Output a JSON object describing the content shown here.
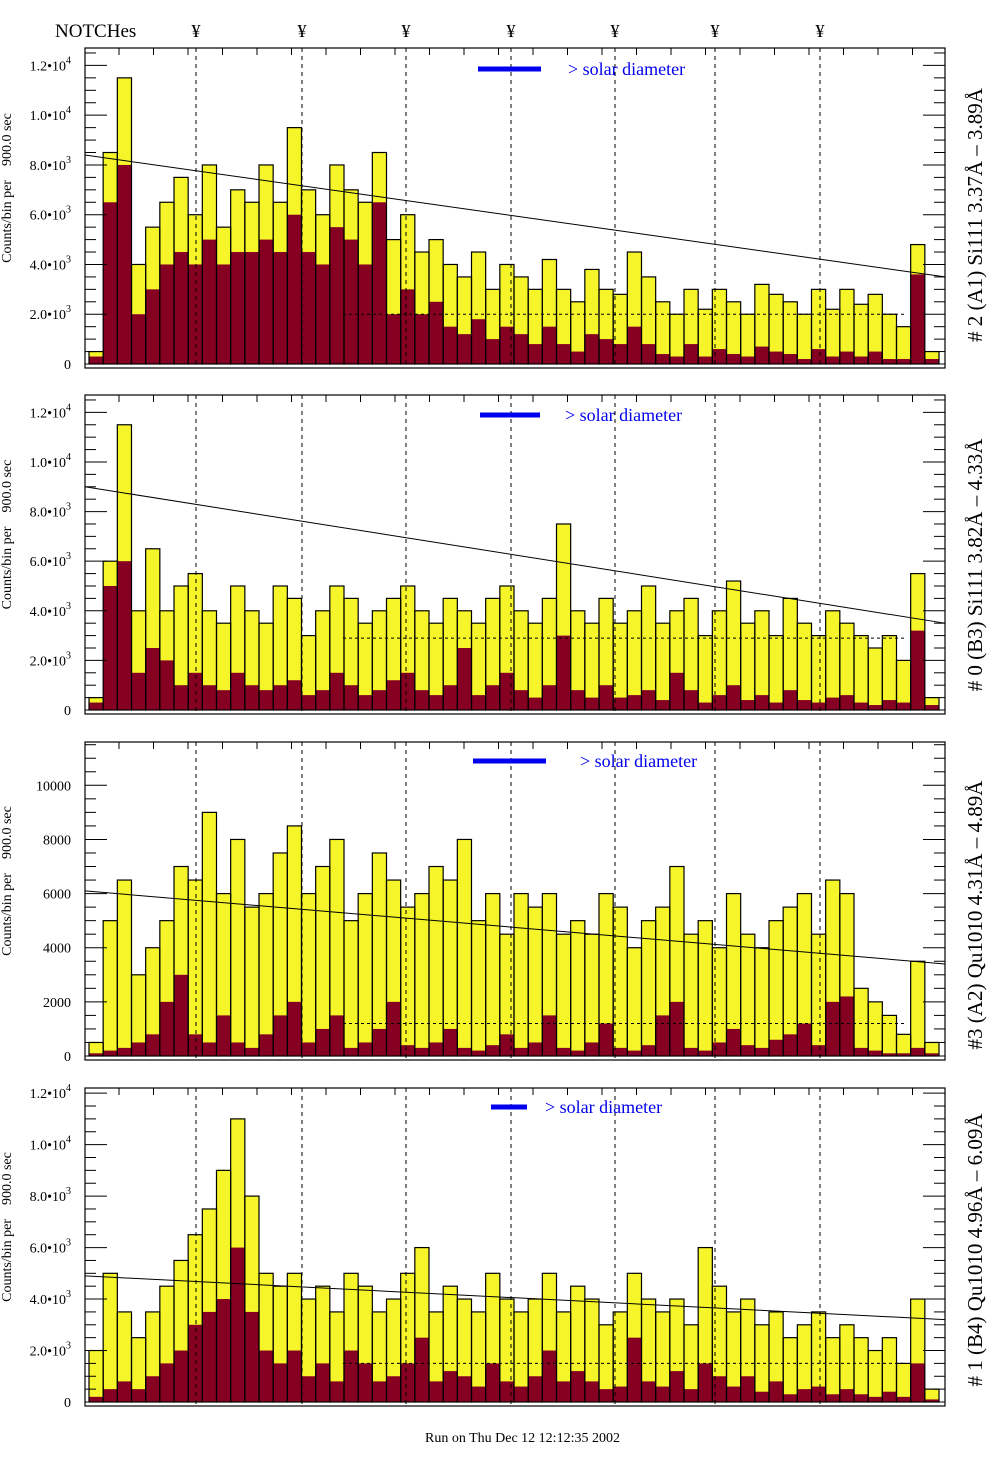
{
  "header": {
    "notches_label": "NOTCHes",
    "notch_marker": "¥"
  },
  "footer": {
    "run_text": "Run on Thu Dec 12 12:12:35 2002"
  },
  "colors": {
    "total": "#f5f52a",
    "subset": "#860022",
    "legend": "#0000ee",
    "outline": "#000000"
  },
  "chart_data": [
    {
      "type": "bar",
      "title": "# 2 (A1) Si111  3.37Å – 3.89Å",
      "ylabel": "Counts/bin per    900.0 sec",
      "legend": "> solar diameter",
      "value_unit_multiplier": 1000,
      "ylim": [
        0,
        12.7
      ],
      "yticks": [
        {
          "v": 0,
          "m": "0",
          "e": ""
        },
        {
          "v": 2,
          "m": "2.0•10",
          "e": "3"
        },
        {
          "v": 4,
          "m": "4.0•10",
          "e": "3"
        },
        {
          "v": 6,
          "m": "6.0•10",
          "e": "3"
        },
        {
          "v": 8,
          "m": "8.0•10",
          "e": "3"
        },
        {
          "v": 10,
          "m": "1.0•10",
          "e": "4"
        },
        {
          "v": 12,
          "m": "1.2•10",
          "e": "4"
        }
      ],
      "trend": [
        8.4,
        3.5
      ],
      "mean_level": 2.0,
      "total": [
        0.5,
        8.5,
        11.5,
        4,
        5.5,
        6.5,
        7.5,
        6,
        8,
        5.5,
        7,
        6.5,
        8,
        6.5,
        9.5,
        7,
        6,
        8,
        7,
        6.5,
        8.5,
        5,
        6,
        4.5,
        5,
        4,
        3.5,
        4.5,
        3,
        4,
        3.5,
        3,
        4.2,
        3,
        2.5,
        3.8,
        3,
        2.8,
        4.5,
        3.5,
        2.5,
        2,
        3,
        2.2,
        3,
        2.5,
        2,
        3.2,
        2.8,
        2.5,
        2,
        3,
        2.2,
        3,
        2.4,
        2.8,
        2,
        1.5,
        4.8,
        0.5
      ],
      "subset": [
        0.3,
        6.5,
        8,
        2,
        3,
        4,
        4.5,
        4,
        5,
        4,
        4.5,
        4.5,
        5,
        4.5,
        6,
        4.5,
        4,
        5.5,
        5,
        4,
        6.5,
        2,
        3,
        2,
        2.5,
        1.5,
        1.2,
        1.8,
        1,
        1.5,
        1.2,
        0.8,
        1.5,
        0.8,
        0.5,
        1.2,
        1,
        0.8,
        1.5,
        0.8,
        0.4,
        0.3,
        0.8,
        0.3,
        0.6,
        0.4,
        0.3,
        0.7,
        0.5,
        0.4,
        0.2,
        0.6,
        0.3,
        0.5,
        0.3,
        0.5,
        0.2,
        0.2,
        3.6,
        0.2
      ]
    },
    {
      "type": "bar",
      "title": "# 0 (B3) Si111  3.82Å – 4.33Å",
      "ylabel": "Counts/bin per    900.0 sec",
      "legend": "> solar diameter",
      "value_unit_multiplier": 1000,
      "ylim": [
        0,
        12.7
      ],
      "yticks": [
        {
          "v": 0,
          "m": "0",
          "e": ""
        },
        {
          "v": 2,
          "m": "2.0•10",
          "e": "3"
        },
        {
          "v": 4,
          "m": "4.0•10",
          "e": "3"
        },
        {
          "v": 6,
          "m": "6.0•10",
          "e": "3"
        },
        {
          "v": 8,
          "m": "8.0•10",
          "e": "3"
        },
        {
          "v": 10,
          "m": "1.0•10",
          "e": "4"
        },
        {
          "v": 12,
          "m": "1.2•10",
          "e": "4"
        }
      ],
      "trend": [
        9.0,
        3.5
      ],
      "mean_level": 2.9,
      "total": [
        0.5,
        6,
        11.5,
        4,
        6.5,
        4,
        5,
        5.5,
        4,
        3.5,
        5,
        4,
        3.5,
        5,
        4.5,
        3,
        4,
        5,
        4.5,
        3.5,
        4,
        4.5,
        5,
        4,
        3.5,
        4.5,
        4,
        3.5,
        4.5,
        5,
        4,
        3.5,
        4.5,
        7.5,
        4,
        3.5,
        4.5,
        3.5,
        4,
        5,
        3.5,
        4,
        4.5,
        3,
        4,
        5.2,
        3.5,
        4,
        3,
        4.5,
        3.5,
        3,
        4,
        3.5,
        3,
        2.5,
        3,
        2,
        5.5,
        0.5
      ],
      "subset": [
        0.3,
        5,
        6,
        1.5,
        2.5,
        2,
        1,
        1.5,
        1,
        0.8,
        1.5,
        1,
        0.8,
        1,
        1.2,
        0.6,
        0.8,
        1.5,
        1,
        0.6,
        0.8,
        1.2,
        1.5,
        0.8,
        0.6,
        1,
        2.5,
        0.6,
        1,
        1.5,
        0.8,
        0.5,
        1,
        3,
        0.8,
        0.5,
        1,
        0.5,
        0.6,
        0.8,
        0.4,
        1.5,
        0.8,
        0.3,
        0.6,
        1,
        0.4,
        0.6,
        0.3,
        0.8,
        0.4,
        0.3,
        0.5,
        0.6,
        0.3,
        0.2,
        0.4,
        0.3,
        3.2,
        0.2
      ]
    },
    {
      "type": "bar",
      "title": "#3 (A2) Qu1010  4.31Å – 4.89Å",
      "ylabel": "Counts/bin per    900.0 sec",
      "legend": "> solar diameter",
      "value_unit_multiplier": 1000,
      "ylim": [
        0,
        11.6
      ],
      "yticks": [
        {
          "v": 0,
          "m": "0",
          "e": ""
        },
        {
          "v": 2,
          "m": "2000",
          "e": ""
        },
        {
          "v": 4,
          "m": "4000",
          "e": ""
        },
        {
          "v": 6,
          "m": "6000",
          "e": ""
        },
        {
          "v": 8,
          "m": "8000",
          "e": ""
        },
        {
          "v": 10,
          "m": "10000",
          "e": ""
        }
      ],
      "trend": [
        6.1,
        3.4
      ],
      "mean_level": 1.2,
      "total": [
        0.5,
        5,
        6.5,
        3,
        4,
        5,
        7,
        6.5,
        9,
        6,
        8,
        5.5,
        6,
        7.5,
        8.5,
        6,
        7,
        8,
        5,
        6,
        7.5,
        6.5,
        5.5,
        6,
        7,
        6.5,
        8,
        5,
        6,
        4.5,
        6,
        5.5,
        6,
        4.5,
        5,
        4.5,
        6,
        5.5,
        4,
        5,
        5.5,
        7,
        4.5,
        5,
        4,
        6,
        4.5,
        4,
        5,
        5.5,
        6,
        4.5,
        6.5,
        6,
        2.5,
        2,
        1.5,
        0.8,
        3.5,
        0.5
      ],
      "subset": [
        0.1,
        0.2,
        0.3,
        0.5,
        0.8,
        2,
        3,
        0.8,
        0.5,
        1.5,
        0.5,
        0.3,
        0.8,
        1.5,
        2,
        0.5,
        1,
        1.5,
        0.3,
        0.5,
        1,
        2,
        0.4,
        0.3,
        0.5,
        1,
        0.3,
        0.2,
        0.4,
        0.8,
        0.3,
        0.5,
        1.5,
        0.3,
        0.2,
        0.5,
        1.2,
        0.3,
        0.2,
        0.4,
        1.5,
        2,
        0.3,
        0.2,
        0.5,
        1,
        0.4,
        0.3,
        0.6,
        0.8,
        1.2,
        0.4,
        2,
        2.2,
        0.3,
        0.2,
        0.1,
        0.1,
        0.3,
        0.1
      ]
    },
    {
      "type": "bar",
      "title": "# 1 (B4) Qu1010 4.96Å – 6.09Å",
      "ylabel": "Counts/bin per    900.0 sec",
      "legend": "> solar diameter",
      "value_unit_multiplier": 1000,
      "ylim": [
        0,
        12.2
      ],
      "yticks": [
        {
          "v": 0,
          "m": "0",
          "e": ""
        },
        {
          "v": 2,
          "m": "2.0•10",
          "e": "3"
        },
        {
          "v": 4,
          "m": "4.0•10",
          "e": "3"
        },
        {
          "v": 6,
          "m": "6.0•10",
          "e": "3"
        },
        {
          "v": 8,
          "m": "8.0•10",
          "e": "3"
        },
        {
          "v": 10,
          "m": "1.0•10",
          "e": "4"
        },
        {
          "v": 12,
          "m": "1.2•10",
          "e": "4"
        }
      ],
      "trend": [
        4.9,
        3.2
      ],
      "mean_level": 1.5,
      "total": [
        2,
        5,
        3.5,
        2.5,
        3.5,
        4.5,
        5.5,
        6.5,
        7.5,
        9,
        11,
        8,
        5,
        4.5,
        5,
        4,
        4.5,
        3.5,
        5,
        4.5,
        3.5,
        4,
        5,
        6,
        3.5,
        4.5,
        4,
        3.5,
        5,
        4,
        3.5,
        4,
        5,
        3.5,
        4.5,
        4,
        3,
        3.5,
        5,
        4,
        3.5,
        4,
        3,
        6,
        4.5,
        3.5,
        4,
        3,
        3.5,
        2.5,
        3,
        3.5,
        2.5,
        3,
        2.5,
        2,
        2.5,
        1.5,
        4,
        0.5
      ],
      "subset": [
        0.2,
        0.5,
        0.8,
        0.5,
        1,
        1.5,
        2,
        3,
        3.5,
        4,
        6,
        3.5,
        2,
        1.5,
        2,
        1,
        1.5,
        0.8,
        2,
        1.5,
        0.8,
        1,
        1.5,
        2.5,
        0.8,
        1.2,
        1,
        0.6,
        1.5,
        0.8,
        0.6,
        1,
        2,
        0.8,
        1.2,
        0.8,
        0.5,
        0.6,
        2.5,
        0.8,
        0.6,
        1.2,
        0.5,
        1.5,
        1,
        0.6,
        1,
        0.4,
        0.8,
        0.3,
        0.5,
        0.6,
        0.3,
        0.5,
        0.3,
        0.2,
        0.4,
        0.2,
        1.5,
        0.1
      ]
    }
  ]
}
